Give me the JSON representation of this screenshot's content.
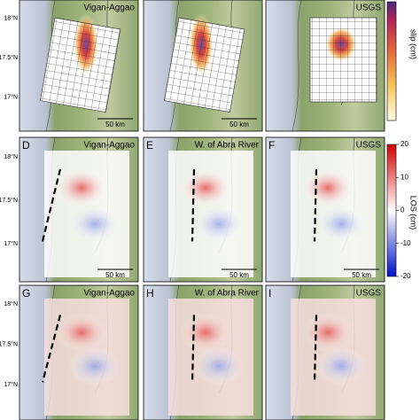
{
  "rows": [
    {
      "lat_labels": [
        "18°N",
        "17.5°N",
        "17°N"
      ],
      "panels": [
        {
          "title": "Vigan-Aggao",
          "scale": "50 km"
        },
        {
          "scale": "50 km"
        },
        {
          "title": "USGS"
        }
      ]
    },
    {
      "lat_labels": [
        "18°N",
        "17.5°N",
        "17°N"
      ],
      "panels": [
        {
          "label": "D",
          "title": "Vigan-Aggao",
          "scale": "50 km"
        },
        {
          "label": "E",
          "title": "W. of Abra River",
          "scale": "50 km"
        },
        {
          "label": "F",
          "title": "USGS",
          "scale": "50 km"
        }
      ]
    },
    {
      "lat_labels": [
        "18°N",
        "17.5°N",
        "17°N"
      ],
      "panels": [
        {
          "label": "G",
          "title": "Vigan-Aggao"
        },
        {
          "label": "H",
          "title": "W. of Abra River"
        },
        {
          "label": "I",
          "title": "USGS"
        }
      ]
    }
  ],
  "colorbars": {
    "slip": {
      "label": "slip (cm)"
    },
    "los": {
      "label": "LOS (cm)",
      "range": [
        -20,
        20
      ],
      "ticks": [
        20,
        10,
        0,
        -10,
        -20
      ]
    }
  }
}
